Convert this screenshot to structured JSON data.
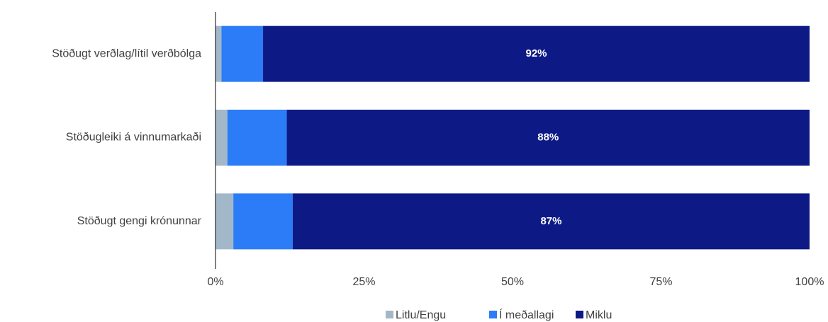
{
  "chart_data": {
    "type": "stacked-barh",
    "categories": [
      "Stöðugt verðlag/lítil verðbólga",
      "Stöðugleiki á vinnumarkaði",
      "Stöðugt gengi krónunnar"
    ],
    "series": [
      {
        "name": "Litlu/Engu",
        "color": "#a2b8c8",
        "values": [
          1,
          2,
          3
        ]
      },
      {
        "name": "Í meðallagi",
        "color": "#2b7cf6",
        "values": [
          7,
          10,
          10
        ]
      },
      {
        "name": "Miklu",
        "color": "#0d1a85",
        "values": [
          92,
          88,
          87
        ],
        "value_labels": [
          "92%",
          "88%",
          "87%"
        ]
      }
    ],
    "xlim": [
      0,
      100
    ],
    "xticks": [
      {
        "value": 0,
        "label": "0%"
      },
      {
        "value": 25,
        "label": "25%"
      },
      {
        "value": 50,
        "label": "50%"
      },
      {
        "value": 75,
        "label": "75%"
      },
      {
        "value": 100,
        "label": "100%"
      }
    ]
  }
}
